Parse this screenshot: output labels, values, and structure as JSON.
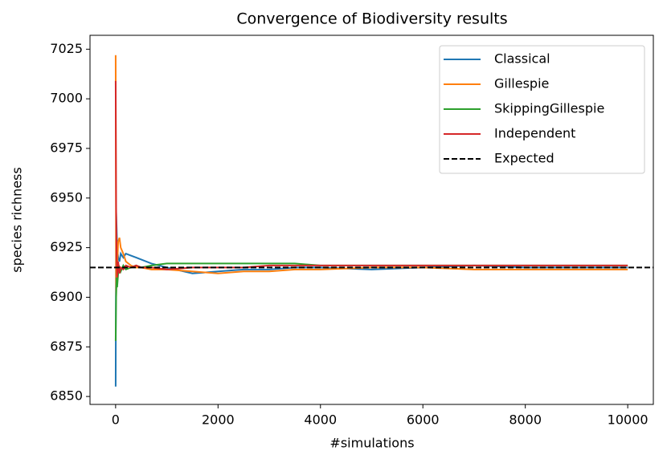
{
  "chart_data": {
    "type": "line",
    "title": "Convergence of Biodiversity results",
    "x_label": "#simulations",
    "y_label": "species richness",
    "x": [
      1,
      10,
      20,
      30,
      50,
      75,
      100,
      150,
      200,
      300,
      400,
      500,
      700,
      1000,
      1500,
      2000,
      2500,
      3000,
      3500,
      4000,
      5000,
      6000,
      7000,
      8000,
      9000,
      10000
    ],
    "series": [
      {
        "name": "Classical",
        "color": "#1f77b4",
        "values": [
          6855,
          6943,
          6935,
          6925,
          6920,
          6918,
          6922,
          6920,
          6922,
          6921,
          6920,
          6919,
          6917,
          6915,
          6912,
          6913,
          6914,
          6914,
          6915,
          6915,
          6914,
          6915,
          6916,
          6915,
          6915,
          6915
        ]
      },
      {
        "name": "Gillespie",
        "color": "#ff7f0e",
        "values": [
          7022,
          6900,
          6925,
          6915,
          6928,
          6930,
          6925,
          6922,
          6918,
          6916,
          6915,
          6915,
          6914,
          6914,
          6913,
          6912,
          6913,
          6913,
          6914,
          6914,
          6915,
          6915,
          6914,
          6914,
          6914,
          6914
        ]
      },
      {
        "name": "SkippingGillespie",
        "color": "#2ca02c",
        "values": [
          6878,
          6900,
          6910,
          6905,
          6912,
          6915,
          6913,
          6916,
          6914,
          6915,
          6916,
          6915,
          6916,
          6917,
          6917,
          6917,
          6917,
          6917,
          6917,
          6916,
          6916,
          6916,
          6916,
          6916,
          6916,
          6916
        ]
      },
      {
        "name": "Independent",
        "color": "#d62728",
        "values": [
          7009,
          6945,
          6920,
          6910,
          6918,
          6912,
          6915,
          6914,
          6916,
          6915,
          6916,
          6915,
          6915,
          6914,
          6915,
          6915,
          6915,
          6916,
          6916,
          6916,
          6916,
          6916,
          6916,
          6916,
          6916,
          6916
        ]
      }
    ],
    "hlines": [
      {
        "name": "Expected",
        "value": 6915,
        "color": "#000000",
        "style": "dashed"
      }
    ],
    "xlim": [
      -500,
      10500
    ],
    "ylim": [
      6846,
      7032
    ],
    "xticks": [
      0,
      2000,
      4000,
      6000,
      8000,
      10000
    ],
    "yticks": [
      6850,
      6875,
      6900,
      6925,
      6950,
      6975,
      7000,
      7025
    ],
    "grid": false,
    "legend": "upper right"
  }
}
